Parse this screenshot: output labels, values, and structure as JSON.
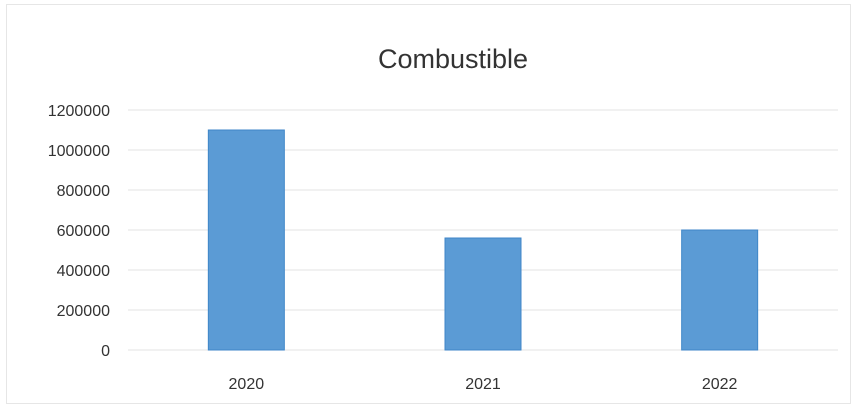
{
  "chart_data": {
    "type": "bar",
    "title": "Combustible",
    "xlabel": "",
    "ylabel": "",
    "categories": [
      "2020",
      "2021",
      "2022"
    ],
    "values": [
      1100000,
      560000,
      600000
    ],
    "ylim": [
      0,
      1200000
    ],
    "yticks": [
      "0",
      "200000",
      "400000",
      "600000",
      "800000",
      "1000000",
      "1200000"
    ],
    "grid": true,
    "legend": "none",
    "colors": {
      "bar_fill": "#5b9bd5",
      "bar_stroke": "#3f86c8"
    }
  }
}
